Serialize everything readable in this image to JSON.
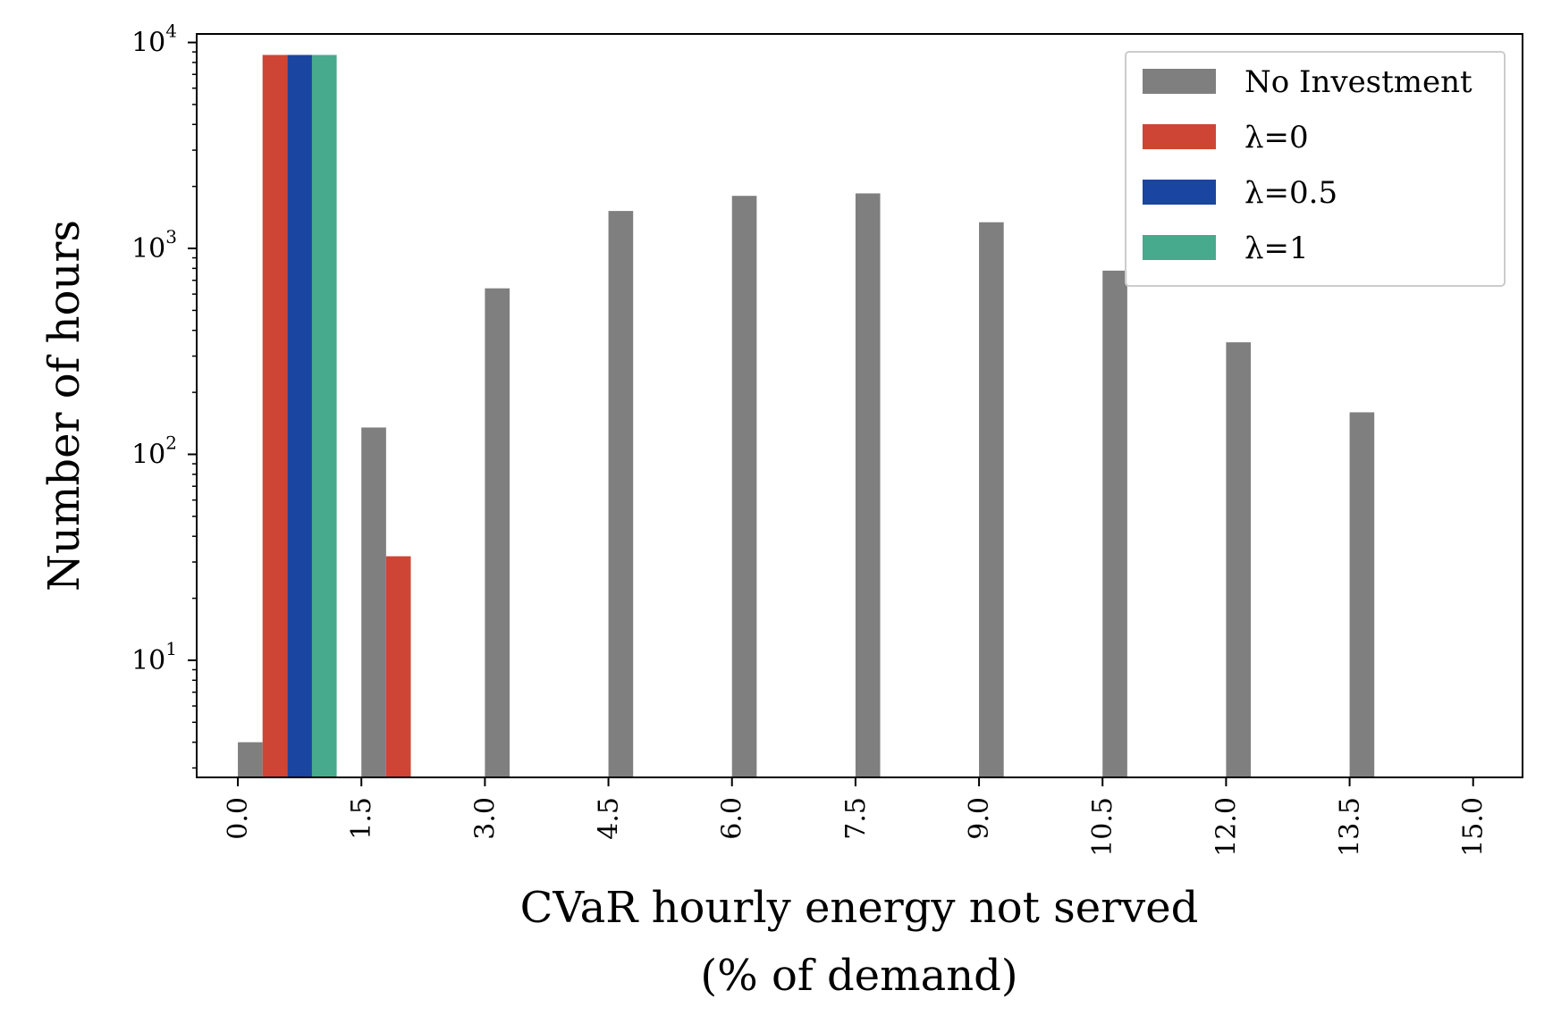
{
  "chart_data": {
    "type": "bar",
    "title": "",
    "xlabel_line1": "CVaR hourly energy not served",
    "xlabel_line2": "(% of demand)",
    "ylabel": "Number of hours",
    "yscale": "log",
    "ylim": [
      2.7,
      11000
    ],
    "xlim": [
      -0.5,
      15.6
    ],
    "x_ticks": [
      "0.0",
      "1.5",
      "3.0",
      "4.5",
      "6.0",
      "7.5",
      "9.0",
      "10.5",
      "12.0",
      "13.5",
      "15.0"
    ],
    "x_tick_values": [
      0.0,
      1.5,
      3.0,
      4.5,
      6.0,
      7.5,
      9.0,
      10.5,
      12.0,
      13.5,
      15.0
    ],
    "y_ticks": [
      {
        "value": 10,
        "base": "10",
        "exp": "1"
      },
      {
        "value": 100,
        "base": "10",
        "exp": "2"
      },
      {
        "value": 1000,
        "base": "10",
        "exp": "3"
      },
      {
        "value": 10000,
        "base": "10",
        "exp": "4"
      }
    ],
    "bin_starts": [
      0.0,
      1.5,
      3.0,
      4.5,
      6.0,
      7.5,
      9.0,
      10.5,
      12.0,
      13.5
    ],
    "group_width": 1.2,
    "series": [
      {
        "name": "No Investment",
        "color": "#7f7f7f",
        "values": [
          4,
          135,
          640,
          1520,
          1800,
          1850,
          1340,
          780,
          350,
          160
        ]
      },
      {
        "name": "λ=0",
        "color": "#cf4535",
        "values": [
          8700,
          32,
          0,
          0,
          0,
          0,
          0,
          0,
          0,
          0
        ]
      },
      {
        "name": "λ=0.5",
        "color": "#1a45a0",
        "values": [
          8700,
          0,
          0,
          0,
          0,
          0,
          0,
          0,
          0,
          0
        ]
      },
      {
        "name": "λ=1",
        "color": "#47aa8c",
        "values": [
          8700,
          0,
          0,
          0,
          0,
          0,
          0,
          0,
          0,
          0
        ]
      }
    ],
    "legend_position": "top-right"
  }
}
